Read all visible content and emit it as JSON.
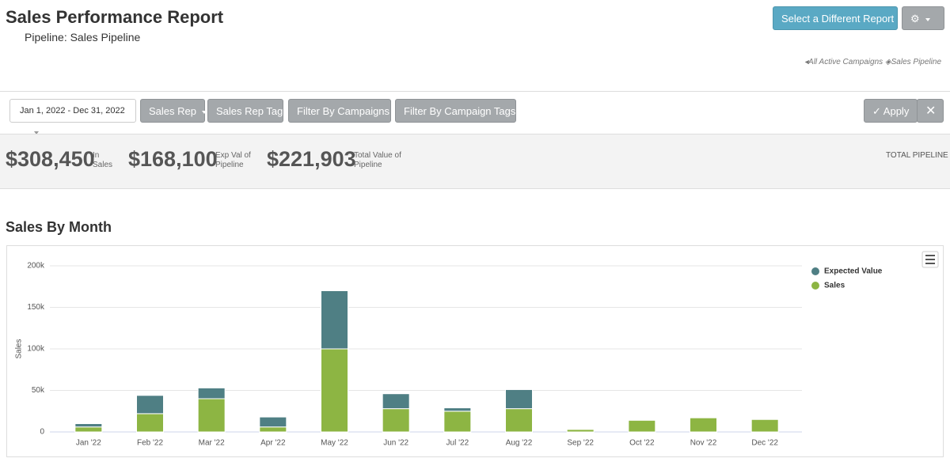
{
  "header": {
    "title": "Sales Performance Report",
    "subtitle": "Pipeline: Sales Pipeline",
    "report_button": "Select a Different Report",
    "campaigns_link": "All Active Campaigns",
    "pipeline_link": "Sales Pipeline"
  },
  "filters": {
    "date_range": "Jan 1, 2022 - Dec 31, 2022",
    "buttons": [
      "Sales Rep",
      "Sales Rep Tag",
      "Filter By Campaigns",
      "Filter By Campaign Tags"
    ],
    "apply": "Apply"
  },
  "stats": {
    "items": [
      {
        "value": "$308,450",
        "label": "In Sales"
      },
      {
        "value": "$168,100",
        "label": "Exp Val of Pipeline"
      },
      {
        "value": "$221,903",
        "label": "Total Value of Pipeline"
      }
    ],
    "right_label": "TOTAL PIPELINE"
  },
  "chart_data": {
    "type": "stacked_bar",
    "title": "Sales By Month",
    "y_label": "Sales",
    "categories": [
      "Jan '22",
      "Feb '22",
      "Mar '22",
      "Apr '22",
      "May '22",
      "Jun '22",
      "Jul '22",
      "Aug '22",
      "Sep '22",
      "Oct '22",
      "Nov '22",
      "Dec '22"
    ],
    "series": [
      {
        "name": "Expected Value",
        "color": "#4f7f84",
        "values": [
          4000,
          22000,
          13000,
          12000,
          70000,
          18000,
          4000,
          23000,
          0,
          0,
          0,
          0
        ]
      },
      {
        "name": "Sales",
        "color": "#8db543",
        "values": [
          6000,
          22000,
          40000,
          6000,
          100000,
          28000,
          25000,
          28000,
          3000,
          14000,
          17000,
          15000
        ]
      }
    ],
    "ylim": [
      0,
      200000
    ],
    "yticks": [
      {
        "value": 0,
        "label": "0"
      },
      {
        "value": 50000,
        "label": "50k"
      },
      {
        "value": 100000,
        "label": "100k"
      },
      {
        "value": 150000,
        "label": "150k"
      },
      {
        "value": 200000,
        "label": "200k"
      }
    ],
    "grid": true
  }
}
